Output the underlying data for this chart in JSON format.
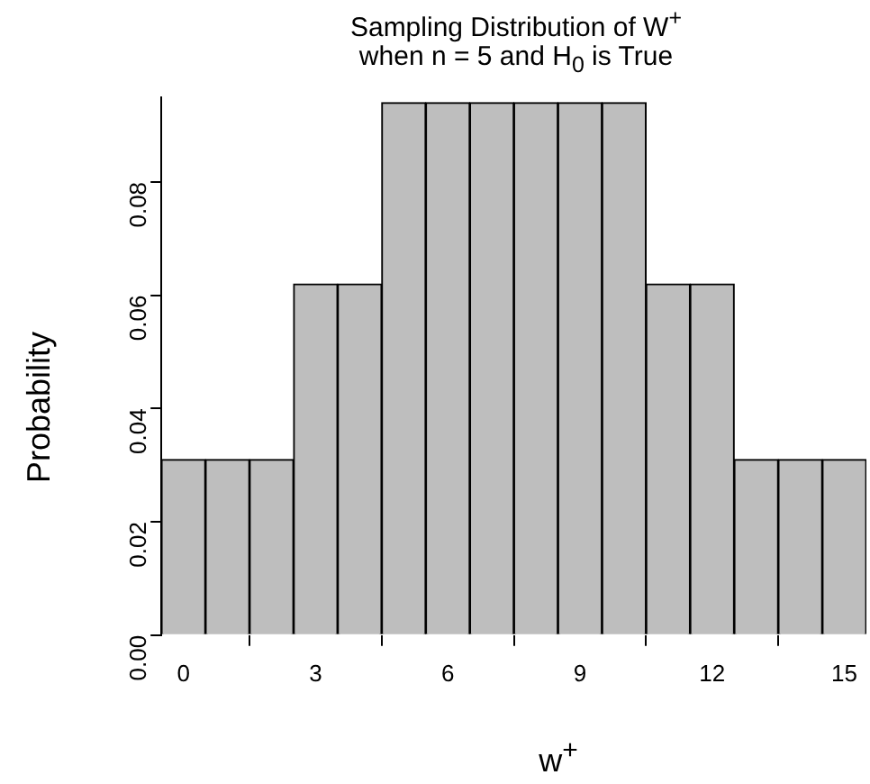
{
  "chart_data": {
    "type": "bar",
    "title": "Sampling Distribution of W$^{+}$\nwhen n = 5 and H$_{0}$ is True",
    "xlabel": "w$^{+}$",
    "ylabel": "Probability",
    "x": [
      0,
      1,
      2,
      3,
      4,
      5,
      6,
      7,
      8,
      9,
      10,
      11,
      12,
      13,
      14,
      15
    ],
    "values": [
      0.031,
      0.031,
      0.031,
      0.062,
      0.062,
      0.094,
      0.094,
      0.094,
      0.094,
      0.094,
      0.094,
      0.062,
      0.062,
      0.031,
      0.031,
      0.031
    ],
    "color": "#bebebe",
    "xlim": [
      -0.5,
      15.5
    ],
    "xticks": [
      0,
      3,
      6,
      9,
      12,
      15
    ],
    "ylim": [
      0,
      0.095
    ],
    "yticks": [
      {
        "value": 0,
        "label": "0.00"
      },
      {
        "value": 0.02,
        "label": "0.02"
      },
      {
        "value": 0.04,
        "label": "0.04"
      },
      {
        "value": 0.06,
        "label": "0.06"
      },
      {
        "value": 0.08,
        "label": "0.08"
      }
    ],
    "grid": false,
    "legend": false
  }
}
